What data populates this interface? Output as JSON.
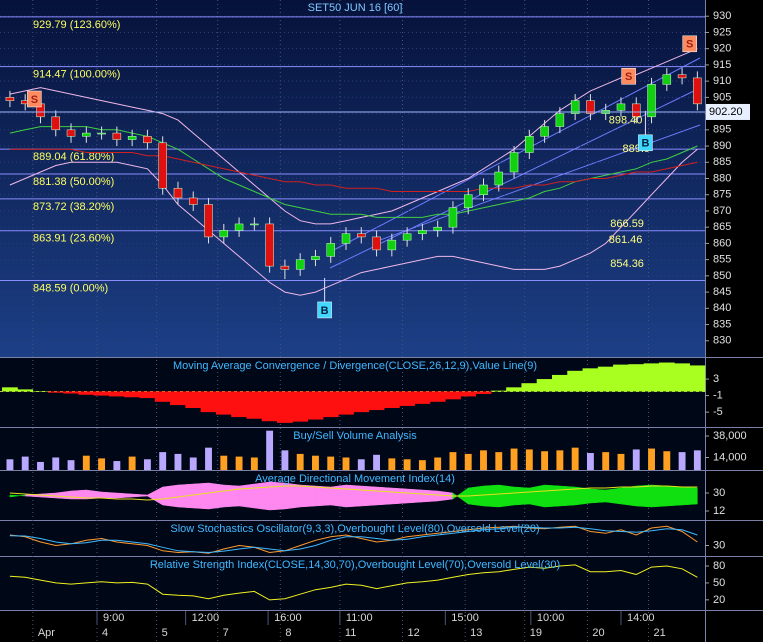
{
  "chart_data": [
    {
      "type": "candlestick",
      "title": "SET50 JUN 16  [60]",
      "x": [
        0,
        1,
        2,
        3,
        4,
        5,
        6,
        7,
        8,
        9,
        10,
        11,
        12,
        13,
        14,
        15,
        16,
        17,
        18,
        19,
        20,
        21,
        22,
        23,
        24,
        25,
        26,
        27,
        28,
        29,
        30,
        31,
        32,
        33,
        34,
        35,
        36,
        37,
        38,
        39,
        40,
        41,
        42,
        43,
        44,
        45
      ],
      "open": [
        905,
        904,
        903,
        899,
        895,
        893,
        894,
        894,
        892,
        893,
        891,
        877,
        874,
        872,
        862,
        864,
        866,
        866,
        853,
        852,
        855,
        856,
        860,
        863,
        862,
        858,
        861,
        863,
        864,
        865,
        871,
        875,
        878,
        882,
        888,
        893,
        896,
        900,
        904,
        900,
        901,
        903,
        899,
        909,
        912,
        911
      ],
      "high": [
        907,
        906,
        905,
        901,
        897,
        896,
        896,
        896,
        895,
        895,
        893,
        879,
        876,
        874,
        866,
        868,
        868,
        868,
        855,
        857,
        858,
        862,
        865,
        865,
        864,
        863,
        865,
        866,
        867,
        873,
        877,
        880,
        884,
        890,
        895,
        898,
        902,
        906,
        906,
        903,
        905,
        905,
        911,
        914,
        914,
        913
      ],
      "low": [
        902,
        901,
        897,
        893,
        891,
        891,
        892,
        890,
        890,
        889,
        875,
        872,
        870,
        860,
        860,
        862,
        864,
        851,
        849,
        850,
        853,
        854,
        858,
        860,
        856,
        856,
        859,
        861,
        862,
        863,
        869,
        873,
        876,
        880,
        886,
        891,
        894,
        898,
        898,
        898,
        899,
        897,
        897,
        907,
        909,
        901
      ],
      "close": [
        904,
        903,
        899,
        895,
        893,
        894,
        894,
        892,
        893,
        891,
        877,
        874,
        872,
        862,
        864,
        866,
        866,
        853,
        852,
        855,
        856,
        860,
        863,
        862,
        858,
        861,
        863,
        864,
        865,
        871,
        875,
        878,
        882,
        888,
        893,
        896,
        900,
        904,
        900,
        901,
        903,
        899,
        909,
        912,
        911,
        903
      ],
      "up_color": "#10d010",
      "down_color": "#e01010",
      "overlays": [
        {
          "color": "#f0b8e8",
          "values": [
            906,
            907,
            908,
            907,
            906,
            905,
            904,
            903,
            902,
            901,
            900,
            898,
            894,
            890,
            886,
            882,
            878,
            874,
            870,
            867,
            866,
            866,
            867,
            868,
            869,
            870,
            872,
            874,
            876,
            878,
            880,
            883,
            886,
            889,
            893,
            897,
            901,
            904,
            907,
            909,
            911,
            912,
            914,
            916,
            918,
            920
          ]
        },
        {
          "color": "#f0b8e8",
          "values": [
            878,
            880,
            882,
            884,
            885,
            885,
            885,
            885,
            884,
            883,
            878,
            872,
            868,
            864,
            860,
            856,
            852,
            848,
            845,
            844,
            845,
            847,
            849,
            851,
            852,
            853,
            854,
            855,
            856,
            856,
            855,
            854,
            853,
            852,
            852,
            852,
            853,
            855,
            857,
            860,
            865,
            870,
            875,
            880,
            885,
            889
          ]
        },
        {
          "color": "#40d040",
          "values": [
            894,
            895,
            896,
            896,
            896,
            896,
            895,
            895,
            894,
            893,
            891,
            889,
            886,
            883,
            880,
            878,
            876,
            874,
            872,
            871,
            870,
            869,
            869,
            869,
            868,
            868,
            868,
            868,
            869,
            869,
            870,
            871,
            872,
            873,
            874,
            876,
            877,
            879,
            880,
            881,
            882,
            883,
            885,
            886,
            888,
            890
          ]
        },
        {
          "color": "#d02020",
          "values": [
            889,
            889,
            889,
            889,
            889,
            888,
            888,
            888,
            888,
            887,
            887,
            886,
            885,
            884,
            883,
            882,
            881,
            880,
            879,
            879,
            878,
            878,
            877,
            877,
            877,
            876,
            876,
            876,
            876,
            876,
            876,
            877,
            877,
            877,
            878,
            878,
            879,
            879,
            880,
            880,
            881,
            882,
            882,
            883,
            884,
            885
          ]
        }
      ],
      "levels": [
        {
          "value": 929.79,
          "label": "929.79 (123.60%)"
        },
        {
          "value": 914.47,
          "label": "914.47 (100.00%)"
        },
        {
          "value": 889.04,
          "label": "889.04 (61.80%)"
        },
        {
          "value": 881.38,
          "label": "881.38 (50.00%)"
        },
        {
          "value": 873.72,
          "label": "873.72 (38.20%)"
        },
        {
          "value": 863.91,
          "label": "863.91 (23.60%)"
        },
        {
          "value": 848.59,
          "label": "848.59 (0.00%)"
        }
      ],
      "annotations": [
        {
          "x": 39.2,
          "value": 897.8,
          "label": "898.40"
        },
        {
          "x": 40.1,
          "value": 889,
          "label": "889.9"
        },
        {
          "x": 39.3,
          "value": 866,
          "label": "866.59"
        },
        {
          "x": 39.2,
          "value": 861,
          "label": "861.46"
        },
        {
          "x": 39.3,
          "value": 853.6,
          "label": "854.36"
        }
      ],
      "signals": [
        {
          "x": 1.6,
          "value": 904.5,
          "label": "S",
          "color": "#ff8c60"
        },
        {
          "x": 40.5,
          "value": 911.5,
          "label": "S",
          "color": "#ff8c60"
        },
        {
          "x": 44.5,
          "value": 921.5,
          "label": "S",
          "color": "#ff8c60"
        },
        {
          "x": 20.6,
          "value": 839.5,
          "label": "B",
          "color": "#40d8ff"
        },
        {
          "x": 41.6,
          "value": 891,
          "label": "B",
          "color": "#40d8ff"
        }
      ],
      "last_price": {
        "value": 900.5,
        "label": "902.20"
      },
      "xlim": [
        -0.65,
        45.5
      ],
      "ylim": [
        825,
        935
      ],
      "yticks": [
        830,
        835,
        840,
        845,
        850,
        855,
        860,
        865,
        870,
        875,
        880,
        885,
        890,
        895,
        900,
        905,
        910,
        915,
        920,
        925,
        930
      ],
      "grid": true,
      "xticks": [
        {
          "value": 5.7,
          "label": "9:00"
        },
        {
          "value": 11.5,
          "label": "12:00"
        },
        {
          "value": 16.9,
          "label": "16:00"
        },
        {
          "value": 21.6,
          "label": "11:00"
        },
        {
          "value": 28.5,
          "label": "15:00"
        },
        {
          "value": 34.1,
          "label": "10:00"
        },
        {
          "value": 40.0,
          "label": "14:00"
        }
      ],
      "date_ticks": [
        {
          "value": 1.5,
          "label": "Apr"
        },
        {
          "value": 5.7,
          "label": "4"
        },
        {
          "value": 9.6,
          "label": "5"
        },
        {
          "value": 13.6,
          "label": "7"
        },
        {
          "value": 17.7,
          "label": "8"
        },
        {
          "value": 21.6,
          "label": "11"
        },
        {
          "value": 25.7,
          "label": "12"
        },
        {
          "value": 29.8,
          "label": "13"
        },
        {
          "value": 33.7,
          "label": "19"
        },
        {
          "value": 37.8,
          "label": "20"
        },
        {
          "value": 41.8,
          "label": "21"
        }
      ]
    },
    {
      "type": "bar",
      "title": "Moving Average Convergence / Divergence(CLOSE,26,12,9),Value Line(9)",
      "values": [
        1,
        0.5,
        0,
        -0.3,
        -0.5,
        -0.8,
        -1,
        -1.2,
        -1.4,
        -1.6,
        -2.5,
        -3.3,
        -4,
        -5,
        -5.6,
        -6.2,
        -6.6,
        -7.2,
        -7.6,
        -7.3,
        -6.8,
        -6.2,
        -5.6,
        -5,
        -4.5,
        -4,
        -3.5,
        -3,
        -2.5,
        -1.9,
        -1.2,
        -0.6,
        0.2,
        1,
        2,
        3,
        4,
        5,
        5.6,
        6,
        6.5,
        6.6,
        6.8,
        7,
        6.8,
        6.3
      ],
      "pos_color": "#a8ff20",
      "neg_color": "#ff1010",
      "ylim": [
        -8.6,
        8.1
      ],
      "yticks": [
        3,
        -1,
        -5
      ]
    },
    {
      "type": "bar",
      "title": "Buy/Sell Volume Analysis",
      "values": [
        12000,
        15000,
        9000,
        14000,
        11000,
        16000,
        13000,
        10000,
        15000,
        12000,
        20000,
        18000,
        14000,
        25000,
        16000,
        15000,
        14000,
        44000,
        22000,
        18000,
        16000,
        15000,
        14000,
        12000,
        17000,
        13000,
        12000,
        11000,
        14000,
        20000,
        18000,
        22000,
        20000,
        24000,
        23000,
        21000,
        22000,
        25000,
        19000,
        20000,
        18000,
        23000,
        24000,
        21000,
        20000,
        22000
      ],
      "up_color": "#ffa020",
      "down_color": "#b8a8ff",
      "ylim": [
        0,
        47000
      ],
      "yticks": [
        {
          "value": 38000,
          "label": "38,000"
        },
        {
          "value": 14000,
          "label": "14,000"
        }
      ]
    },
    {
      "type": "band",
      "title": "Average Directional Movement Index(14)",
      "series": [
        {
          "color": "#10e010",
          "values": [
            28,
            27,
            26,
            25,
            24,
            24,
            25,
            25,
            26,
            27,
            18,
            16,
            15,
            14,
            16,
            17,
            15,
            13,
            14,
            16,
            17,
            18,
            16,
            17,
            18,
            19,
            20,
            21,
            22,
            24,
            35,
            37,
            38,
            36,
            35,
            38,
            37,
            36,
            34,
            33,
            35,
            37,
            38,
            37,
            36,
            35
          ]
        },
        {
          "color": "#ff88f0",
          "values": [
            26,
            28,
            29,
            30,
            32,
            33,
            31,
            30,
            29,
            28,
            36,
            38,
            39,
            40,
            38,
            37,
            39,
            41,
            40,
            38,
            37,
            36,
            38,
            37,
            36,
            35,
            34,
            33,
            32,
            30,
            19,
            17,
            16,
            18,
            19,
            16,
            17,
            18,
            20,
            21,
            19,
            17,
            16,
            17,
            18,
            19
          ]
        },
        {
          "color": "#e8e020",
          "values": [
            30,
            29,
            28,
            27,
            26,
            25,
            25,
            24,
            24,
            23,
            24,
            26,
            28,
            30,
            32,
            34,
            35,
            36,
            37,
            37,
            36,
            35,
            34,
            33,
            32,
            31,
            30,
            29,
            28,
            27,
            27,
            28,
            29,
            30,
            31,
            32,
            33,
            34,
            35,
            35,
            36,
            36,
            37,
            37,
            36,
            36
          ]
        }
      ],
      "ylim": [
        3,
        52
      ],
      "yticks": [
        30,
        12
      ]
    },
    {
      "type": "line",
      "title": "Slow Stochastics Oscillator(9,3,3),Overbought Level(80),Oversold Level(20)",
      "series": [
        {
          "color": "#ff9a30",
          "values": [
            60,
            55,
            40,
            30,
            35,
            45,
            50,
            40,
            35,
            30,
            15,
            10,
            12,
            8,
            20,
            30,
            25,
            10,
            15,
            30,
            45,
            55,
            60,
            50,
            40,
            45,
            55,
            60,
            65,
            70,
            75,
            80,
            82,
            85,
            80,
            78,
            82,
            85,
            70,
            65,
            75,
            60,
            80,
            85,
            70,
            40
          ]
        },
        {
          "color": "#40b8ff",
          "values": [
            58,
            57,
            50,
            40,
            35,
            38,
            45,
            45,
            40,
            35,
            25,
            15,
            12,
            10,
            14,
            20,
            25,
            20,
            15,
            20,
            30,
            45,
            55,
            55,
            50,
            45,
            48,
            55,
            60,
            65,
            70,
            75,
            78,
            82,
            82,
            80,
            80,
            82,
            78,
            72,
            70,
            68,
            72,
            78,
            75,
            60
          ]
        }
      ],
      "ylim": [
        0,
        100
      ],
      "yticks": [
        30
      ]
    },
    {
      "type": "line",
      "title": "Relative Strength Index(CLOSE,14,30,70),Overbought Level(70),Oversold Level(30)",
      "series": [
        {
          "color": "#f0f020",
          "values": [
            62,
            60,
            55,
            50,
            48,
            50,
            52,
            50,
            51,
            48,
            30,
            28,
            27,
            22,
            28,
            32,
            35,
            20,
            22,
            30,
            38,
            42,
            48,
            46,
            40,
            45,
            50,
            52,
            55,
            60,
            65,
            68,
            70,
            74,
            78,
            76,
            80,
            82,
            70,
            70,
            72,
            65,
            78,
            80,
            75,
            60
          ]
        }
      ],
      "ylim": [
        2,
        96
      ],
      "yticks": [
        80,
        50,
        20
      ]
    }
  ]
}
